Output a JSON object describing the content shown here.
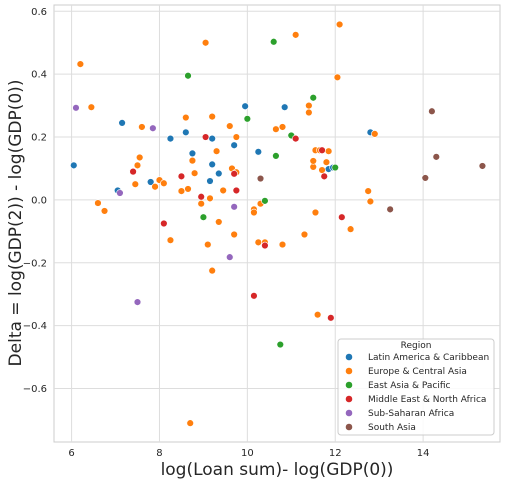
{
  "chart_data": {
    "type": "scatter",
    "title": "",
    "xlabel": "log(Loan sum)- log(GDP(0))",
    "ylabel": "Delta = log(GDP(2)) - log(GDP(0))",
    "xlim": [
      5.6,
      15.75
    ],
    "ylim": [
      -0.77,
      0.62
    ],
    "xticks": [
      6,
      8,
      10,
      12,
      14
    ],
    "yticks": [
      -0.6,
      -0.4,
      -0.2,
      0.0,
      0.2,
      0.4,
      0.6
    ],
    "xtick_labels": [
      "6",
      "8",
      "10",
      "12",
      "14"
    ],
    "ytick_labels": [
      "−0.6",
      "−0.4",
      "−0.2",
      "0.0",
      "0.2",
      "0.4",
      "0.6"
    ],
    "grid": true,
    "legend": {
      "title": "Region",
      "placement": "lower-right"
    },
    "series": [
      {
        "name": "Latin America & Caribbean",
        "color": "#1f77b4",
        "points": [
          [
            6.05,
            0.11
          ],
          [
            7.05,
            0.03
          ],
          [
            7.15,
            0.245
          ],
          [
            7.8,
            0.057
          ],
          [
            8.25,
            0.195
          ],
          [
            8.6,
            0.215
          ],
          [
            8.75,
            0.148
          ],
          [
            9.15,
            0.06
          ],
          [
            9.2,
            0.113
          ],
          [
            9.2,
            0.195
          ],
          [
            9.35,
            0.084
          ],
          [
            9.7,
            0.174
          ],
          [
            9.95,
            0.298
          ],
          [
            10.25,
            0.153
          ],
          [
            10.85,
            0.295
          ],
          [
            11.85,
            0.098
          ],
          [
            11.95,
            0.103
          ],
          [
            12.8,
            0.215
          ]
        ]
      },
      {
        "name": "Europe & Central Asia",
        "color": "#ff7f0e",
        "points": [
          [
            6.2,
            0.432
          ],
          [
            6.45,
            0.295
          ],
          [
            6.6,
            -0.01
          ],
          [
            6.75,
            -0.035
          ],
          [
            7.45,
            0.05
          ],
          [
            7.5,
            0.11
          ],
          [
            7.55,
            0.135
          ],
          [
            7.6,
            0.232
          ],
          [
            7.9,
            0.042
          ],
          [
            8.0,
            0.063
          ],
          [
            8.1,
            0.053
          ],
          [
            8.25,
            -0.128
          ],
          [
            8.5,
            0.028
          ],
          [
            8.6,
            0.262
          ],
          [
            8.65,
            0.035
          ],
          [
            8.7,
            -0.71
          ],
          [
            8.75,
            0.125
          ],
          [
            8.8,
            0.085
          ],
          [
            8.95,
            -0.012
          ],
          [
            9.05,
            0.5
          ],
          [
            9.1,
            -0.142
          ],
          [
            9.15,
            0.005
          ],
          [
            9.2,
            0.265
          ],
          [
            9.2,
            -0.225
          ],
          [
            9.3,
            0.155
          ],
          [
            9.35,
            -0.07
          ],
          [
            9.45,
            0.03
          ],
          [
            9.6,
            0.235
          ],
          [
            9.65,
            0.1
          ],
          [
            9.7,
            -0.11
          ],
          [
            9.75,
            0.2
          ],
          [
            9.75,
            0.088
          ],
          [
            10.15,
            -0.03
          ],
          [
            10.15,
            -0.04
          ],
          [
            10.25,
            -0.135
          ],
          [
            10.3,
            -0.012
          ],
          [
            10.4,
            -0.135
          ],
          [
            10.65,
            0.225
          ],
          [
            10.8,
            0.232
          ],
          [
            10.8,
            -0.142
          ],
          [
            11.1,
            0.525
          ],
          [
            11.3,
            -0.11
          ],
          [
            11.4,
            0.3
          ],
          [
            11.4,
            0.278
          ],
          [
            11.5,
            0.105
          ],
          [
            11.5,
            0.124
          ],
          [
            11.55,
            0.158
          ],
          [
            11.55,
            -0.04
          ],
          [
            11.6,
            -0.365
          ],
          [
            11.65,
            0.158
          ],
          [
            11.7,
            0.095
          ],
          [
            11.8,
            0.12
          ],
          [
            11.85,
            0.155
          ],
          [
            12.05,
            0.39
          ],
          [
            12.1,
            0.558
          ],
          [
            12.35,
            -0.093
          ],
          [
            12.75,
            0.028
          ],
          [
            12.8,
            -0.005
          ],
          [
            12.9,
            0.21
          ]
        ]
      },
      {
        "name": "East Asia & Pacific",
        "color": "#2ca02c",
        "points": [
          [
            8.65,
            0.395
          ],
          [
            9.0,
            -0.055
          ],
          [
            10.0,
            0.258
          ],
          [
            10.4,
            -0.003
          ],
          [
            10.6,
            0.503
          ],
          [
            10.65,
            0.14
          ],
          [
            10.75,
            -0.46
          ],
          [
            11.0,
            0.205
          ],
          [
            11.5,
            0.325
          ],
          [
            12.0,
            0.103
          ]
        ]
      },
      {
        "name": "Middle East & North Africa",
        "color": "#d62728",
        "points": [
          [
            7.4,
            0.09
          ],
          [
            8.1,
            -0.075
          ],
          [
            8.5,
            0.075
          ],
          [
            8.95,
            0.01
          ],
          [
            9.05,
            0.2
          ],
          [
            9.7,
            0.083
          ],
          [
            9.75,
            0.03
          ],
          [
            10.15,
            -0.305
          ],
          [
            10.4,
            -0.145
          ],
          [
            11.1,
            0.195
          ],
          [
            11.7,
            0.158
          ],
          [
            11.75,
            0.075
          ],
          [
            11.9,
            -0.375
          ],
          [
            12.15,
            -0.055
          ]
        ]
      },
      {
        "name": "Sub-Saharan Africa",
        "color": "#9467bd",
        "points": [
          [
            6.1,
            0.293
          ],
          [
            7.1,
            0.022
          ],
          [
            7.5,
            -0.325
          ],
          [
            7.85,
            0.228
          ],
          [
            9.6,
            -0.182
          ],
          [
            9.7,
            -0.022
          ]
        ]
      },
      {
        "name": "South Asia",
        "color": "#8c564b",
        "points": [
          [
            10.3,
            0.068
          ],
          [
            13.25,
            -0.03
          ],
          [
            14.05,
            0.07
          ],
          [
            14.2,
            0.282
          ],
          [
            14.3,
            0.137
          ],
          [
            15.35,
            0.108
          ]
        ]
      }
    ]
  }
}
